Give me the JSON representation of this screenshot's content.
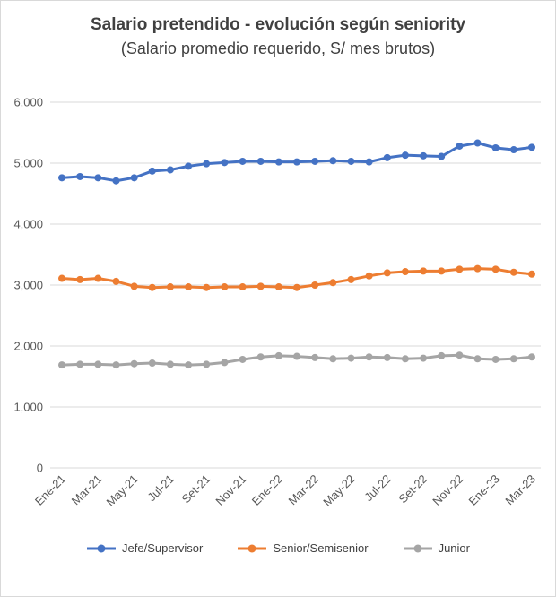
{
  "title": "Salario pretendido - evolución según seniority",
  "subtitle": "(Salario promedio requerido, S/ mes brutos)",
  "chart_data": {
    "type": "line",
    "x": [
      "Ene-21",
      "Feb-21",
      "Mar-21",
      "Abr-21",
      "May-21",
      "Jun-21",
      "Jul-21",
      "Ago-21",
      "Set-21",
      "Oct-21",
      "Nov-21",
      "Dic-21",
      "Ene-22",
      "Feb-22",
      "Mar-22",
      "Abr-22",
      "May-22",
      "Jun-22",
      "Jul-22",
      "Ago-22",
      "Set-22",
      "Oct-22",
      "Nov-22",
      "Dic-22",
      "Ene-23",
      "Feb-23",
      "Mar-23"
    ],
    "x_tick_every": 2,
    "series": [
      {
        "name": "Jefe/Supervisor",
        "color": "#4472C4",
        "values": [
          4760,
          4780,
          4760,
          4710,
          4760,
          4870,
          4890,
          4950,
          4990,
          5010,
          5030,
          5030,
          5020,
          5020,
          5030,
          5040,
          5030,
          5020,
          5090,
          5130,
          5120,
          5110,
          5280,
          5330,
          5250,
          5220,
          5260
        ]
      },
      {
        "name": "Senior/Semisenior",
        "color": "#ED7D31",
        "values": [
          3110,
          3090,
          3110,
          3060,
          2980,
          2960,
          2970,
          2970,
          2960,
          2970,
          2970,
          2980,
          2970,
          2960,
          3000,
          3040,
          3090,
          3150,
          3200,
          3220,
          3230,
          3230,
          3260,
          3270,
          3260,
          3210,
          3180
        ]
      },
      {
        "name": "Junior",
        "color": "#A5A5A5",
        "values": [
          1690,
          1700,
          1700,
          1690,
          1710,
          1720,
          1700,
          1690,
          1700,
          1730,
          1780,
          1820,
          1840,
          1830,
          1810,
          1790,
          1800,
          1820,
          1810,
          1790,
          1800,
          1840,
          1850,
          1790,
          1780,
          1790,
          1820
        ]
      }
    ],
    "ylim": [
      0,
      6000
    ],
    "y_tick_step": 1000,
    "grid": true,
    "legend_position": "bottom",
    "colors": {
      "grid": "#D9D9D9",
      "axis_text": "#595959",
      "title_text": "#404040"
    }
  }
}
